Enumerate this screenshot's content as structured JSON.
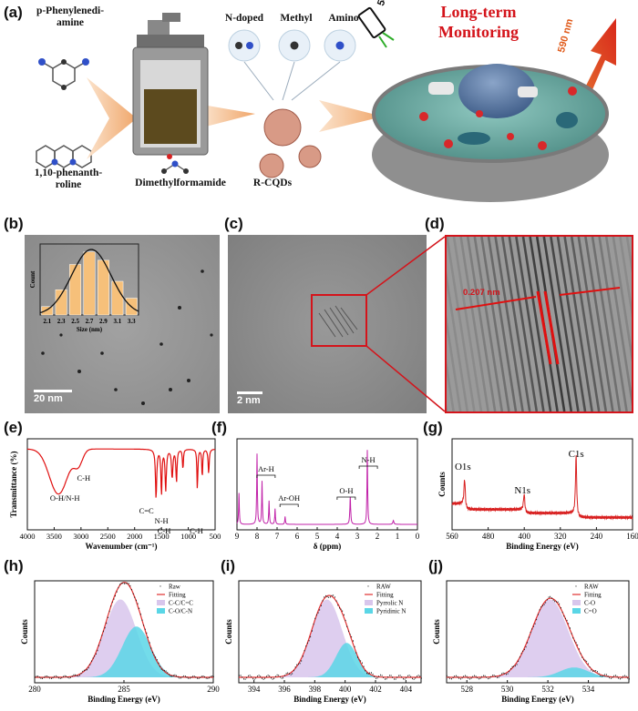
{
  "panel_a": {
    "label": "(a)",
    "reactant1": "p-Phenylenedi-\namine",
    "reactant2": "1,10-phenanth-\nroline",
    "solvent": "Dimethylformamide",
    "product": "R-CQDs",
    "groups": [
      "N-doped",
      "Methyl",
      "Amino"
    ],
    "excitation": "543 nm",
    "emission": "590 nm",
    "title_line1": "Long-term",
    "title_line2": "Monitoring",
    "colors": {
      "title": "#d4141b",
      "excitation": "#2fae2a",
      "emission": "#e05a1a"
    }
  },
  "panel_b": {
    "label": "(b)",
    "scale": "20  nm"
  },
  "panel_c": {
    "label": "(c)",
    "scale": "2  nm"
  },
  "panel_d": {
    "label": "(d)",
    "spacing": "0.207 nm"
  },
  "chart_data": [
    {
      "id": "b-inset",
      "type": "bar",
      "title": "",
      "xlabel": "Size (nm)",
      "ylabel": "Count",
      "categories": [
        "2.1",
        "2.3",
        "2.5",
        "2.7",
        "2.9",
        "3.1",
        "3.3"
      ],
      "values": [
        2,
        6,
        12,
        15,
        13,
        8,
        4
      ],
      "ylim": [
        0,
        16
      ],
      "fit": "gaussian"
    },
    {
      "id": "e",
      "label": "(e)",
      "type": "line",
      "xlabel": "Wavenumber (cm⁻¹)",
      "ylabel": "Transmittance (%)",
      "xlim": [
        4000,
        500
      ],
      "ticks": [
        "4000",
        "3500",
        "3000",
        "2500",
        "2000",
        "1500",
        "1000",
        "500"
      ],
      "annotations": [
        "O-H/N-H",
        "C-H",
        "C=C",
        "N-H",
        "C-H",
        "C-H"
      ]
    },
    {
      "id": "f",
      "label": "(f)",
      "type": "line",
      "xlabel": "δ (ppm)",
      "xlim": [
        9,
        0
      ],
      "ticks": [
        "9",
        "8",
        "7",
        "6",
        "5",
        "4",
        "3",
        "2",
        "1",
        "0"
      ],
      "annotations": [
        "Ar-H",
        "Ar-OH",
        "O-H",
        "N-H"
      ]
    },
    {
      "id": "g",
      "label": "(g)",
      "type": "line",
      "xlabel": "Binding Energy (eV)",
      "ylabel": "Counts",
      "xlim": [
        560,
        160
      ],
      "ticks": [
        "560",
        "480",
        "400",
        "320",
        "240",
        "160"
      ],
      "peaks": [
        {
          "name": "O1s",
          "x": 532
        },
        {
          "name": "N1s",
          "x": 400
        },
        {
          "name": "C1s",
          "x": 285
        }
      ]
    },
    {
      "id": "h",
      "label": "(h)",
      "type": "area",
      "xlabel": "Binding Energy (eV)",
      "ylabel": "Counts",
      "xlim": [
        280,
        290
      ],
      "ticks": [
        "280",
        "285",
        "290"
      ],
      "legend": [
        "Raw",
        "Fitting",
        "C-C/C=C",
        "C-O/C-N"
      ]
    },
    {
      "id": "i",
      "label": "(i)",
      "type": "area",
      "xlabel": "Binding Energy (eV)",
      "ylabel": "Counts",
      "xlim": [
        393,
        405
      ],
      "ticks": [
        "394",
        "396",
        "398",
        "400",
        "402",
        "404"
      ],
      "legend": [
        "RAW",
        "Fitting",
        "Pyrrolic N",
        "Pyridinic N"
      ]
    },
    {
      "id": "j",
      "label": "(j)",
      "type": "area",
      "xlabel": "Binding Energy (eV)",
      "ylabel": "Counts",
      "xlim": [
        527,
        536
      ],
      "ticks": [
        "528",
        "530",
        "532",
        "534"
      ],
      "legend": [
        "RAW",
        "Fitting",
        "C-O",
        "C=O"
      ]
    }
  ]
}
